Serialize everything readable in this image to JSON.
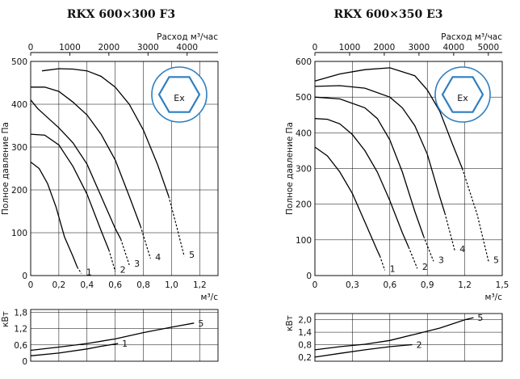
{
  "chart_data": [
    {
      "type": "line",
      "title": "RKX 600×300 F3",
      "top_axis": {
        "label": "Расход м³/час",
        "ticks": [
          "0",
          "1000",
          "2000",
          "3000",
          "4000"
        ],
        "max": 4790
      },
      "ylabel": "Полное давление Па",
      "xlabel": "м³/с",
      "ylim": [
        0,
        500
      ],
      "yticks": [
        "0",
        "100",
        "200",
        "300",
        "400",
        "500"
      ],
      "xlim": [
        0,
        1.33
      ],
      "xticks": [
        "0",
        "0,2",
        "0,4",
        "0,6",
        "0,8",
        "1,0",
        "1,2"
      ],
      "series": [
        {
          "name": "1",
          "x": [
            0,
            0.06,
            0.12,
            0.18,
            0.24,
            0.3,
            0.33
          ],
          "y": [
            265,
            250,
            215,
            160,
            90,
            45,
            20
          ],
          "dash_x": [
            0.33,
            0.36
          ],
          "dash_y": [
            20,
            5
          ]
        },
        {
          "name": "2",
          "x": [
            0,
            0.1,
            0.2,
            0.3,
            0.4,
            0.5,
            0.555
          ],
          "y": [
            330,
            328,
            305,
            255,
            190,
            105,
            60
          ],
          "dash_x": [
            0.555,
            0.6
          ],
          "dash_y": [
            60,
            10
          ]
        },
        {
          "name": "3",
          "x": [
            0,
            0.05,
            0.1,
            0.2,
            0.3,
            0.4,
            0.5,
            0.6,
            0.64
          ],
          "y": [
            410,
            390,
            375,
            345,
            310,
            260,
            185,
            110,
            85
          ],
          "dash_x": [
            0.64,
            0.7
          ],
          "dash_y": [
            85,
            25
          ]
        },
        {
          "name": "4",
          "x": [
            0,
            0.1,
            0.2,
            0.3,
            0.4,
            0.5,
            0.6,
            0.7,
            0.78
          ],
          "y": [
            440,
            440,
            430,
            405,
            375,
            330,
            270,
            185,
            115
          ],
          "dash_x": [
            0.78,
            0.85
          ],
          "dash_y": [
            115,
            40
          ]
        },
        {
          "name": "5",
          "x": [
            0.08,
            0.2,
            0.3,
            0.4,
            0.5,
            0.6,
            0.7,
            0.8,
            0.9,
            0.98
          ],
          "y": [
            478,
            483,
            482,
            478,
            465,
            440,
            400,
            340,
            260,
            185
          ],
          "dash_x": [
            0.98,
            1.04,
            1.09
          ],
          "dash_y": [
            185,
            110,
            45
          ]
        }
      ],
      "power": {
        "ylabel": "кВт",
        "yticks": [
          "0",
          "0,6",
          "1,2",
          "1,8"
        ],
        "ylim": [
          0,
          1.9
        ],
        "series": [
          {
            "name": "1",
            "x": [
              0,
              0.2,
              0.4,
              0.5,
              0.62
            ],
            "y": [
              0.2,
              0.3,
              0.45,
              0.55,
              0.65
            ]
          },
          {
            "name": "5",
            "x": [
              0,
              0.2,
              0.4,
              0.6,
              0.8,
              1.0,
              1.16
            ],
            "y": [
              0.4,
              0.52,
              0.65,
              0.82,
              1.05,
              1.25,
              1.4
            ]
          }
        ]
      },
      "badge": "Ex"
    },
    {
      "type": "line",
      "title": "RKX 600×350 E3",
      "top_axis": {
        "label": "Расход м³/час",
        "ticks": [
          "0",
          "1000",
          "2000",
          "3000",
          "4000",
          "5000"
        ],
        "max": 5400
      },
      "ylabel": "Полное давление Па",
      "xlabel": "м³/с",
      "ylim": [
        0,
        600
      ],
      "yticks": [
        "0",
        "100",
        "200",
        "300",
        "400",
        "500",
        "600"
      ],
      "xlim": [
        0,
        1.5
      ],
      "xticks": [
        "0",
        "0,3",
        "0,6",
        "0,9",
        "1,2",
        "1,5"
      ],
      "series": [
        {
          "name": "1",
          "x": [
            0,
            0.1,
            0.2,
            0.3,
            0.4,
            0.5,
            0.52
          ],
          "y": [
            360,
            335,
            290,
            230,
            150,
            70,
            55
          ],
          "dash_x": [
            0.52,
            0.56
          ],
          "dash_y": [
            55,
            15
          ]
        },
        {
          "name": "2",
          "x": [
            0,
            0.1,
            0.2,
            0.3,
            0.4,
            0.5,
            0.6,
            0.7,
            0.75
          ],
          "y": [
            440,
            438,
            425,
            395,
            350,
            290,
            210,
            120,
            80
          ],
          "dash_x": [
            0.75,
            0.82
          ],
          "dash_y": [
            80,
            20
          ]
        },
        {
          "name": "3",
          "x": [
            0,
            0.2,
            0.4,
            0.5,
            0.6,
            0.7,
            0.8,
            0.87
          ],
          "y": [
            500,
            495,
            470,
            440,
            380,
            290,
            180,
            110
          ],
          "dash_x": [
            0.87,
            0.95
          ],
          "dash_y": [
            110,
            40
          ]
        },
        {
          "name": "4",
          "x": [
            0,
            0.2,
            0.4,
            0.6,
            0.7,
            0.8,
            0.9,
            1.0,
            1.04
          ],
          "y": [
            530,
            532,
            525,
            500,
            470,
            420,
            340,
            220,
            175
          ],
          "dash_x": [
            1.04,
            1.12
          ],
          "dash_y": [
            175,
            70
          ]
        },
        {
          "name": "5",
          "x": [
            0,
            0.2,
            0.4,
            0.6,
            0.8,
            0.9,
            1.0,
            1.1,
            1.18
          ],
          "y": [
            545,
            565,
            577,
            582,
            560,
            520,
            460,
            370,
            300
          ],
          "dash_x": [
            1.18,
            1.3,
            1.39
          ],
          "dash_y": [
            300,
            170,
            40
          ]
        }
      ],
      "power": {
        "ylabel": "кВт",
        "yticks": [
          "0,2",
          "0,8",
          "1,4",
          "2,0"
        ],
        "ylim": [
          0,
          2.3
        ],
        "series": [
          {
            "name": "2",
            "x": [
              0,
              0.2,
              0.4,
              0.6,
              0.78
            ],
            "y": [
              0.2,
              0.38,
              0.55,
              0.7,
              0.8
            ]
          },
          {
            "name": "5",
            "x": [
              0,
              0.2,
              0.4,
              0.6,
              0.8,
              1.0,
              1.2,
              1.27
            ],
            "y": [
              0.55,
              0.7,
              0.82,
              1.0,
              1.3,
              1.6,
              2.0,
              2.1
            ]
          }
        ]
      },
      "badge": "Ex"
    }
  ]
}
